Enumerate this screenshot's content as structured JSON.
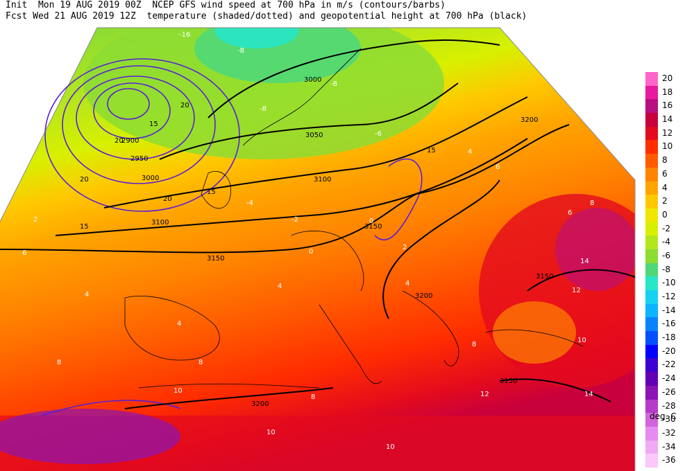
{
  "header": {
    "line1": "Init  Mon 19 AUG 2019 00Z  NCEP GFS wind speed at 700 hPa in m/s (contours/barbs)",
    "line2": "Fcst Wed 21 AUG 2019 12Z  temperature (shaded/dotted) and geopotential height at 700 hPa (black)"
  },
  "legend": {
    "units": "deg. C",
    "levels": [
      {
        "label": "20",
        "color": "#ff66cc"
      },
      {
        "label": "18",
        "color": "#e8199e"
      },
      {
        "label": "16",
        "color": "#b80f80"
      },
      {
        "label": "14",
        "color": "#c8003c"
      },
      {
        "label": "12",
        "color": "#e30a1e"
      },
      {
        "label": "10",
        "color": "#ff2d00"
      },
      {
        "label": "8",
        "color": "#ff5a00"
      },
      {
        "label": "6",
        "color": "#ff8400"
      },
      {
        "label": "4",
        "color": "#ffa500"
      },
      {
        "label": "2",
        "color": "#ffc800"
      },
      {
        "label": "0",
        "color": "#f0e600"
      },
      {
        "label": "-2",
        "color": "#d7f000"
      },
      {
        "label": "-4",
        "color": "#b4e61e"
      },
      {
        "label": "-6",
        "color": "#8cdc32"
      },
      {
        "label": "-8",
        "color": "#50d878"
      },
      {
        "label": "-10",
        "color": "#28e6c8"
      },
      {
        "label": "-12",
        "color": "#14d2f0"
      },
      {
        "label": "-14",
        "color": "#0ab4ff"
      },
      {
        "label": "-16",
        "color": "#0a82ff"
      },
      {
        "label": "-18",
        "color": "#0050ff"
      },
      {
        "label": "-20",
        "color": "#0000ff"
      },
      {
        "label": "-22",
        "color": "#3c00d2"
      },
      {
        "label": "-24",
        "color": "#6400b4"
      },
      {
        "label": "-26",
        "color": "#8c14b4"
      },
      {
        "label": "-28",
        "color": "#b43cc8"
      },
      {
        "label": "-30",
        "color": "#d264dc"
      },
      {
        "label": "-32",
        "color": "#e68cf0"
      },
      {
        "label": "-34",
        "color": "#f0aaf5"
      },
      {
        "label": "-36",
        "color": "#fac8fa"
      }
    ]
  },
  "map_labels": {
    "heights": [
      "3000",
      "3050",
      "3100",
      "3150",
      "3200",
      "2900",
      "2950",
      "3000",
      "3100",
      "3150",
      "3200",
      "3150",
      "3150",
      "3200"
    ],
    "temps": [
      "-16",
      "-8",
      "-8",
      "-8",
      "-6",
      "-4",
      "-2",
      "0",
      "0",
      "2",
      "2",
      "4",
      "4",
      "4",
      "4",
      "4",
      "6",
      "6",
      "8",
      "8",
      "8",
      "8",
      "10",
      "10",
      "10",
      "12",
      "12",
      "14",
      "14",
      "10",
      "6",
      "8"
    ],
    "winds": [
      "20",
      "15",
      "20",
      "20",
      "20",
      "15",
      "15",
      "15"
    ]
  }
}
